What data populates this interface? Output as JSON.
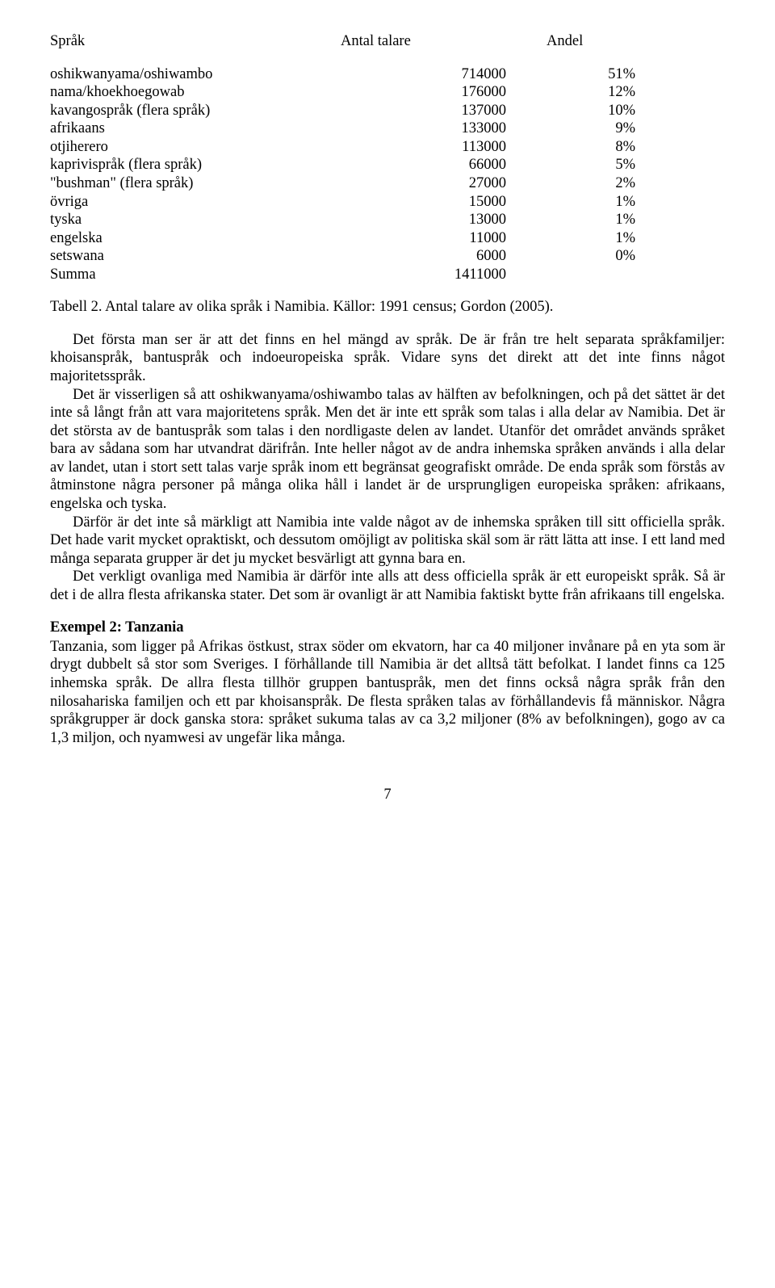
{
  "table": {
    "header": {
      "lang": "Språk",
      "count": "Antal talare",
      "share": "Andel"
    },
    "rows": [
      {
        "lang": "oshikwanyama/oshiwambo",
        "count": "714000",
        "share": "51%"
      },
      {
        "lang": "nama/khoekhoegowab",
        "count": "176000",
        "share": "12%"
      },
      {
        "lang": "kavangospråk (flera språk)",
        "count": "137000",
        "share": "10%"
      },
      {
        "lang": "afrikaans",
        "count": "133000",
        "share": "9%"
      },
      {
        "lang": "otjiherero",
        "count": "113000",
        "share": "8%"
      },
      {
        "lang": "kaprivispråk (flera språk)",
        "count": "66000",
        "share": "5%"
      },
      {
        "lang": "\"bushman\" (flera språk)",
        "count": "27000",
        "share": "2%"
      },
      {
        "lang": "övriga",
        "count": "15000",
        "share": "1%"
      },
      {
        "lang": "tyska",
        "count": "13000",
        "share": "1%"
      },
      {
        "lang": "engelska",
        "count": "11000",
        "share": "1%"
      },
      {
        "lang": "setswana",
        "count": "6000",
        "share": "0%"
      },
      {
        "lang": "Summa",
        "count": "1411000",
        "share": ""
      }
    ]
  },
  "caption": "Tabell 2. Antal talare av olika språk i Namibia. Källor: 1991 census; Gordon (2005).",
  "body": {
    "p1": "Det första man ser är att det finns en hel mängd av språk. De är från tre helt separata språkfamiljer: khoisanspråk, bantuspråk och indoeuropeiska språk. Vidare syns det direkt att det inte finns något majoritetsspråk.",
    "p2": "Det är visserligen så att oshikwanyama/oshiwambo talas av hälften av befolkningen, och på det sättet är det inte så långt från att vara majoritetens språk. Men det är inte ett språk som talas i alla delar av Namibia. Det är det största av de bantuspråk som talas i den nordligaste delen av landet. Utanför det området används språket bara av sådana som har utvandrat därifrån. Inte heller något av de andra inhemska språken används i alla delar av landet, utan i stort sett talas varje språk inom ett begränsat geografiskt område. De enda språk som förstås av åtminstone några personer på många olika håll i landet är de ursprungligen europeiska språken: afrikaans, engelska och tyska.",
    "p3": "Därför är det inte så märkligt att Namibia inte valde något av de inhemska språken till sitt officiella språk. Det hade varit mycket opraktiskt, och dessutom omöjligt av politiska skäl som är rätt lätta att inse. I ett land med många separata grupper är det ju mycket besvärligt att gynna bara en.",
    "p4": "Det verkligt ovanliga med Namibia är därför inte alls att dess officiella språk är ett europeiskt språk. Så är det i de allra flesta afrikanska stater. Det som är ovanligt är att Namibia faktiskt bytte från afrikaans till engelska."
  },
  "section2": {
    "title": "Exempel 2: Tanzania",
    "p1": "Tanzania, som ligger på Afrikas östkust, strax söder om ekvatorn, har ca 40 miljoner invånare på en yta som är drygt dubbelt så stor som Sveriges. I förhållande till Namibia är det alltså tätt befolkat. I landet finns ca 125 inhemska språk. De allra flesta tillhör gruppen bantuspråk, men det finns också några språk från den nilosahariska familjen och ett par khoisanspråk. De flesta språken talas av förhållandevis få människor. Några språkgrupper är dock ganska stora: språket sukuma talas av ca 3,2 miljoner (8% av befolkningen), gogo av ca 1,3 miljon, och nyamwesi av ungefär lika många."
  },
  "page_number": "7"
}
